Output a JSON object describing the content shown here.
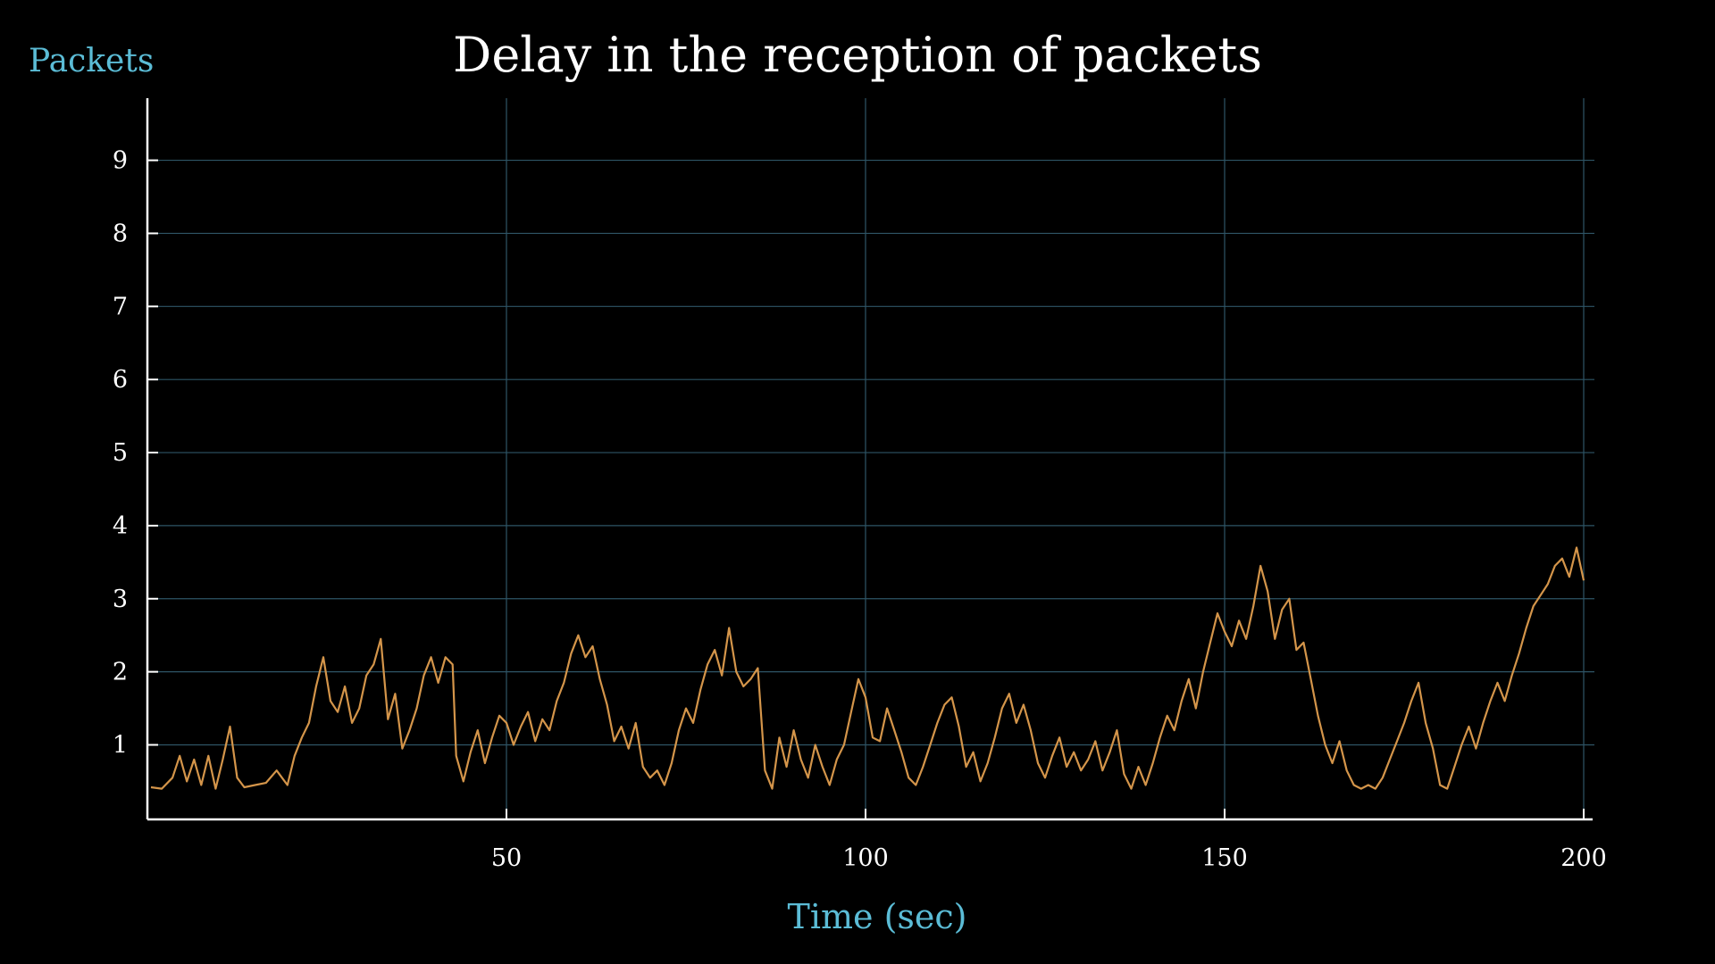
{
  "colors": {
    "background": "#000000",
    "grid": "#2e5566",
    "axis": "#ffffff",
    "line": "#d4954a",
    "label": "#5bbcd6",
    "text": "#ffffff"
  },
  "chart_data": {
    "type": "line",
    "title": "Delay in the reception of packets",
    "xlabel": "Time (sec)",
    "ylabel": "Packets",
    "xlim": [
      0,
      200
    ],
    "ylim": [
      -0.02,
      9.85
    ],
    "xticks": [
      50,
      100,
      150,
      200
    ],
    "yticks": [
      1,
      2,
      3,
      4,
      5,
      6,
      7,
      8,
      9
    ],
    "grid": true,
    "series": [
      {
        "values": [
          [
            0.5,
            0.42
          ],
          [
            2,
            0.4
          ],
          [
            3.5,
            0.55
          ],
          [
            4.5,
            0.85
          ],
          [
            5.5,
            0.5
          ],
          [
            6.5,
            0.8
          ],
          [
            7.5,
            0.45
          ],
          [
            8.5,
            0.85
          ],
          [
            9.5,
            0.4
          ],
          [
            10.5,
            0.8
          ],
          [
            11.5,
            1.25
          ],
          [
            12.5,
            0.55
          ],
          [
            13.5,
            0.42
          ],
          [
            15,
            0.45
          ],
          [
            16.5,
            0.48
          ],
          [
            18,
            0.65
          ],
          [
            19.5,
            0.45
          ],
          [
            20.5,
            0.85
          ],
          [
            21.5,
            1.1
          ],
          [
            22.5,
            1.3
          ],
          [
            23.5,
            1.8
          ],
          [
            24.5,
            2.2
          ],
          [
            25.5,
            1.6
          ],
          [
            26.5,
            1.45
          ],
          [
            27.5,
            1.8
          ],
          [
            28.5,
            1.3
          ],
          [
            29.5,
            1.5
          ],
          [
            30.5,
            1.95
          ],
          [
            31.5,
            2.1
          ],
          [
            32.5,
            2.45
          ],
          [
            33.5,
            1.35
          ],
          [
            34.5,
            1.7
          ],
          [
            35.5,
            0.95
          ],
          [
            36.5,
            1.2
          ],
          [
            37.5,
            1.5
          ],
          [
            38.5,
            1.95
          ],
          [
            39.5,
            2.2
          ],
          [
            40.5,
            1.85
          ],
          [
            41.5,
            2.2
          ],
          [
            42.5,
            2.1
          ],
          [
            43,
            0.85
          ],
          [
            44,
            0.5
          ],
          [
            45,
            0.9
          ],
          [
            46,
            1.2
          ],
          [
            47,
            0.75
          ],
          [
            48,
            1.1
          ],
          [
            49,
            1.4
          ],
          [
            50,
            1.3
          ],
          [
            51,
            1.0
          ],
          [
            52,
            1.25
          ],
          [
            53,
            1.45
          ],
          [
            54,
            1.05
          ],
          [
            55,
            1.35
          ],
          [
            56,
            1.2
          ],
          [
            57,
            1.6
          ],
          [
            58,
            1.85
          ],
          [
            59,
            2.25
          ],
          [
            60,
            2.5
          ],
          [
            61,
            2.2
          ],
          [
            62,
            2.35
          ],
          [
            63,
            1.9
          ],
          [
            64,
            1.55
          ],
          [
            65,
            1.05
          ],
          [
            66,
            1.25
          ],
          [
            67,
            0.95
          ],
          [
            68,
            1.3
          ],
          [
            69,
            0.7
          ],
          [
            70,
            0.55
          ],
          [
            71,
            0.65
          ],
          [
            72,
            0.45
          ],
          [
            73,
            0.75
          ],
          [
            74,
            1.2
          ],
          [
            75,
            1.5
          ],
          [
            76,
            1.3
          ],
          [
            77,
            1.75
          ],
          [
            78,
            2.1
          ],
          [
            79,
            2.3
          ],
          [
            80,
            1.95
          ],
          [
            81,
            2.6
          ],
          [
            82,
            2.0
          ],
          [
            83,
            1.8
          ],
          [
            84,
            1.9
          ],
          [
            85,
            2.05
          ],
          [
            86,
            0.65
          ],
          [
            87,
            0.4
          ],
          [
            88,
            1.1
          ],
          [
            89,
            0.7
          ],
          [
            90,
            1.2
          ],
          [
            91,
            0.8
          ],
          [
            92,
            0.55
          ],
          [
            93,
            1.0
          ],
          [
            94,
            0.7
          ],
          [
            95,
            0.45
          ],
          [
            96,
            0.8
          ],
          [
            97,
            1.0
          ],
          [
            98,
            1.45
          ],
          [
            99,
            1.9
          ],
          [
            100,
            1.65
          ],
          [
            101,
            1.1
          ],
          [
            102,
            1.05
          ],
          [
            103,
            1.5
          ],
          [
            104,
            1.2
          ],
          [
            105,
            0.9
          ],
          [
            106,
            0.55
          ],
          [
            107,
            0.45
          ],
          [
            108,
            0.7
          ],
          [
            109,
            1.0
          ],
          [
            110,
            1.3
          ],
          [
            111,
            1.55
          ],
          [
            112,
            1.65
          ],
          [
            113,
            1.25
          ],
          [
            114,
            0.7
          ],
          [
            115,
            0.9
          ],
          [
            116,
            0.5
          ],
          [
            117,
            0.75
          ],
          [
            118,
            1.1
          ],
          [
            119,
            1.5
          ],
          [
            120,
            1.7
          ],
          [
            121,
            1.3
          ],
          [
            122,
            1.55
          ],
          [
            123,
            1.2
          ],
          [
            124,
            0.75
          ],
          [
            125,
            0.55
          ],
          [
            126,
            0.85
          ],
          [
            127,
            1.1
          ],
          [
            128,
            0.7
          ],
          [
            129,
            0.9
          ],
          [
            130,
            0.65
          ],
          [
            131,
            0.8
          ],
          [
            132,
            1.05
          ],
          [
            133,
            0.65
          ],
          [
            134,
            0.9
          ],
          [
            135,
            1.2
          ],
          [
            136,
            0.6
          ],
          [
            137,
            0.4
          ],
          [
            138,
            0.7
          ],
          [
            139,
            0.45
          ],
          [
            140,
            0.75
          ],
          [
            141,
            1.1
          ],
          [
            142,
            1.4
          ],
          [
            143,
            1.2
          ],
          [
            144,
            1.6
          ],
          [
            145,
            1.9
          ],
          [
            146,
            1.5
          ],
          [
            147,
            2.0
          ],
          [
            148,
            2.4
          ],
          [
            149,
            2.8
          ],
          [
            150,
            2.55
          ],
          [
            151,
            2.35
          ],
          [
            152,
            2.7
          ],
          [
            153,
            2.45
          ],
          [
            154,
            2.9
          ],
          [
            155,
            3.45
          ],
          [
            156,
            3.1
          ],
          [
            157,
            2.45
          ],
          [
            158,
            2.85
          ],
          [
            159,
            3.0
          ],
          [
            160,
            2.3
          ],
          [
            161,
            2.4
          ],
          [
            162,
            1.9
          ],
          [
            163,
            1.4
          ],
          [
            164,
            1.0
          ],
          [
            165,
            0.75
          ],
          [
            166,
            1.05
          ],
          [
            167,
            0.65
          ],
          [
            168,
            0.45
          ],
          [
            169,
            0.4
          ],
          [
            170,
            0.45
          ],
          [
            171,
            0.4
          ],
          [
            172,
            0.55
          ],
          [
            173,
            0.8
          ],
          [
            174,
            1.05
          ],
          [
            175,
            1.3
          ],
          [
            176,
            1.6
          ],
          [
            177,
            1.85
          ],
          [
            178,
            1.3
          ],
          [
            179,
            0.95
          ],
          [
            180,
            0.45
          ],
          [
            181,
            0.4
          ],
          [
            182,
            0.7
          ],
          [
            183,
            1.0
          ],
          [
            184,
            1.25
          ],
          [
            185,
            0.95
          ],
          [
            186,
            1.3
          ],
          [
            187,
            1.6
          ],
          [
            188,
            1.85
          ],
          [
            189,
            1.6
          ],
          [
            190,
            1.95
          ],
          [
            191,
            2.25
          ],
          [
            192,
            2.6
          ],
          [
            193,
            2.9
          ],
          [
            194,
            3.05
          ],
          [
            195,
            3.2
          ],
          [
            196,
            3.45
          ],
          [
            197,
            3.55
          ],
          [
            198,
            3.3
          ],
          [
            199,
            3.7
          ],
          [
            200,
            3.25
          ]
        ]
      }
    ]
  }
}
